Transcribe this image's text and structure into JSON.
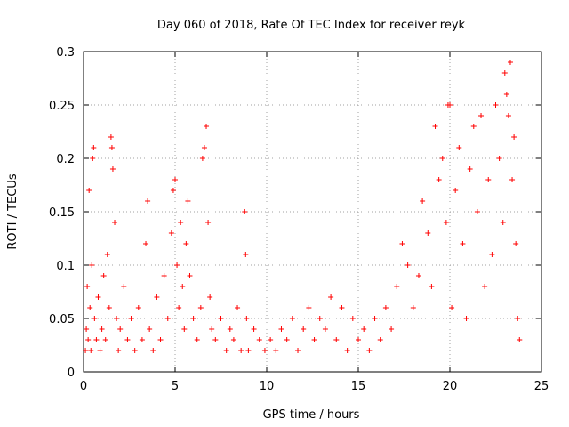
{
  "chart_data": {
    "type": "scatter",
    "title": "Day 060 of 2018, Rate Of TEC Index for receiver reyk",
    "xlabel": "GPS time / hours",
    "ylabel": "ROTI / TECUs",
    "xlim": [
      0,
      25
    ],
    "ylim": [
      0,
      0.3
    ],
    "xticks": [
      0,
      5,
      10,
      15,
      20,
      25
    ],
    "yticks": [
      0,
      0.05,
      0.1,
      0.15,
      0.2,
      0.25,
      0.3
    ],
    "xtick_labels": [
      "0",
      "5",
      "10",
      "15",
      "20",
      "25"
    ],
    "ytick_labels": [
      "0",
      "0.05",
      "0.1",
      "0.15",
      "0.2",
      "0.25",
      "0.3"
    ],
    "grid": true,
    "marker": "+",
    "color": "#ff0000",
    "series": [
      {
        "values": [
          [
            0.1,
            0.02
          ],
          [
            0.15,
            0.04
          ],
          [
            0.2,
            0.08
          ],
          [
            0.25,
            0.03
          ],
          [
            0.3,
            0.17
          ],
          [
            0.35,
            0.06
          ],
          [
            0.4,
            0.02
          ],
          [
            0.45,
            0.1
          ],
          [
            0.5,
            0.2
          ],
          [
            0.55,
            0.21
          ],
          [
            0.6,
            0.05
          ],
          [
            0.7,
            0.03
          ],
          [
            0.8,
            0.07
          ],
          [
            0.9,
            0.02
          ],
          [
            1.0,
            0.04
          ],
          [
            1.1,
            0.09
          ],
          [
            1.2,
            0.03
          ],
          [
            1.3,
            0.11
          ],
          [
            1.4,
            0.06
          ],
          [
            1.5,
            0.22
          ],
          [
            1.55,
            0.21
          ],
          [
            1.6,
            0.19
          ],
          [
            1.7,
            0.14
          ],
          [
            1.8,
            0.05
          ],
          [
            1.9,
            0.02
          ],
          [
            2.0,
            0.04
          ],
          [
            2.2,
            0.08
          ],
          [
            2.4,
            0.03
          ],
          [
            2.6,
            0.05
          ],
          [
            2.8,
            0.02
          ],
          [
            3.0,
            0.06
          ],
          [
            3.2,
            0.03
          ],
          [
            3.4,
            0.12
          ],
          [
            3.5,
            0.16
          ],
          [
            3.6,
            0.04
          ],
          [
            3.8,
            0.02
          ],
          [
            4.0,
            0.07
          ],
          [
            4.2,
            0.03
          ],
          [
            4.4,
            0.09
          ],
          [
            4.6,
            0.05
          ],
          [
            4.8,
            0.13
          ],
          [
            4.9,
            0.17
          ],
          [
            5.0,
            0.18
          ],
          [
            5.1,
            0.1
          ],
          [
            5.2,
            0.06
          ],
          [
            5.3,
            0.14
          ],
          [
            5.4,
            0.08
          ],
          [
            5.5,
            0.04
          ],
          [
            5.6,
            0.12
          ],
          [
            5.7,
            0.16
          ],
          [
            5.8,
            0.09
          ],
          [
            6.0,
            0.05
          ],
          [
            6.2,
            0.03
          ],
          [
            6.4,
            0.06
          ],
          [
            6.5,
            0.2
          ],
          [
            6.6,
            0.21
          ],
          [
            6.7,
            0.23
          ],
          [
            6.8,
            0.14
          ],
          [
            6.9,
            0.07
          ],
          [
            7.0,
            0.04
          ],
          [
            7.2,
            0.03
          ],
          [
            7.5,
            0.05
          ],
          [
            7.8,
            0.02
          ],
          [
            8.0,
            0.04
          ],
          [
            8.2,
            0.03
          ],
          [
            8.4,
            0.06
          ],
          [
            8.6,
            0.02
          ],
          [
            8.8,
            0.15
          ],
          [
            8.85,
            0.11
          ],
          [
            8.9,
            0.05
          ],
          [
            9.0,
            0.02
          ],
          [
            9.3,
            0.04
          ],
          [
            9.6,
            0.03
          ],
          [
            9.9,
            0.02
          ],
          [
            10.2,
            0.03
          ],
          [
            10.5,
            0.02
          ],
          [
            10.8,
            0.04
          ],
          [
            11.1,
            0.03
          ],
          [
            11.4,
            0.05
          ],
          [
            11.7,
            0.02
          ],
          [
            12.0,
            0.04
          ],
          [
            12.3,
            0.06
          ],
          [
            12.6,
            0.03
          ],
          [
            12.9,
            0.05
          ],
          [
            13.2,
            0.04
          ],
          [
            13.5,
            0.07
          ],
          [
            13.8,
            0.03
          ],
          [
            14.1,
            0.06
          ],
          [
            14.4,
            0.02
          ],
          [
            14.7,
            0.05
          ],
          [
            15.0,
            0.03
          ],
          [
            15.3,
            0.04
          ],
          [
            15.6,
            0.02
          ],
          [
            15.9,
            0.05
          ],
          [
            16.2,
            0.03
          ],
          [
            16.5,
            0.06
          ],
          [
            16.8,
            0.04
          ],
          [
            17.1,
            0.08
          ],
          [
            17.4,
            0.12
          ],
          [
            17.7,
            0.1
          ],
          [
            18.0,
            0.06
          ],
          [
            18.3,
            0.09
          ],
          [
            18.5,
            0.16
          ],
          [
            18.8,
            0.13
          ],
          [
            19.0,
            0.08
          ],
          [
            19.2,
            0.23
          ],
          [
            19.4,
            0.18
          ],
          [
            19.6,
            0.2
          ],
          [
            19.8,
            0.14
          ],
          [
            19.9,
            0.25
          ],
          [
            20.0,
            0.25
          ],
          [
            20.1,
            0.06
          ],
          [
            20.3,
            0.17
          ],
          [
            20.5,
            0.21
          ],
          [
            20.7,
            0.12
          ],
          [
            20.9,
            0.05
          ],
          [
            21.1,
            0.19
          ],
          [
            21.3,
            0.23
          ],
          [
            21.5,
            0.15
          ],
          [
            21.7,
            0.24
          ],
          [
            21.9,
            0.08
          ],
          [
            22.1,
            0.18
          ],
          [
            22.3,
            0.11
          ],
          [
            22.5,
            0.25
          ],
          [
            22.7,
            0.2
          ],
          [
            22.9,
            0.14
          ],
          [
            23.0,
            0.28
          ],
          [
            23.1,
            0.26
          ],
          [
            23.2,
            0.24
          ],
          [
            23.3,
            0.29
          ],
          [
            23.4,
            0.18
          ],
          [
            23.5,
            0.22
          ],
          [
            23.6,
            0.12
          ],
          [
            23.7,
            0.05
          ],
          [
            23.8,
            0.03
          ]
        ]
      }
    ]
  }
}
